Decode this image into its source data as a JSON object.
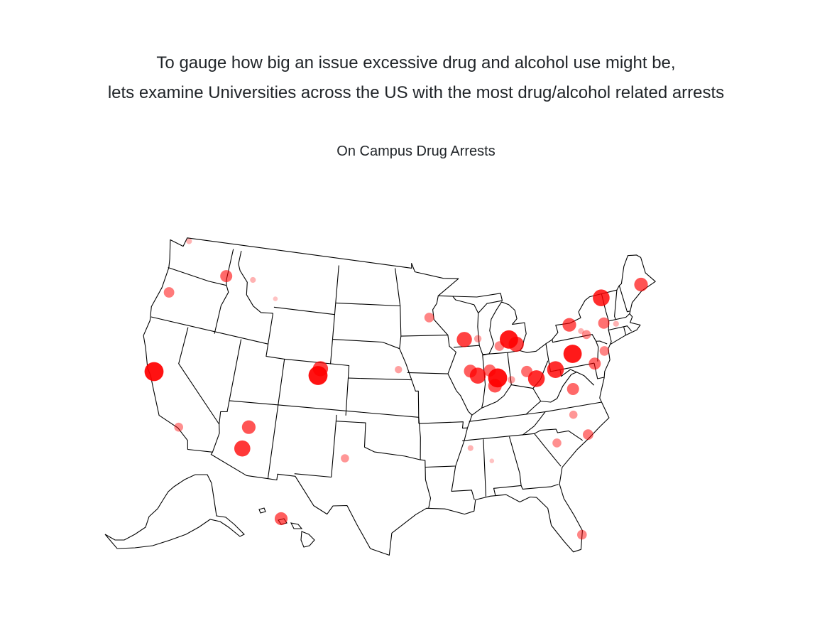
{
  "intro": {
    "line1": "To gauge how big an issue excessive drug and alcohol use might be,",
    "line2": "lets examine Universities across the US with the most drug/alcohol related arrests"
  },
  "map": {
    "title": "On Campus Drug Arrests",
    "projection": "albers-usa",
    "state_outline_color": "#000000",
    "marker_color": "#ff0000",
    "markers_note_scale": "circle size and opacity show relative arrest count (0-1)",
    "markers": [
      {
        "lon": -122.49,
        "lat": 48.73,
        "level": 0.1
      },
      {
        "lon": -117.16,
        "lat": 46.73,
        "level": 0.5
      },
      {
        "lon": -114.0,
        "lat": 46.87,
        "level": 0.1
      },
      {
        "lon": -111.04,
        "lat": 45.68,
        "level": 0.03
      },
      {
        "lon": -123.07,
        "lat": 44.3,
        "level": 0.4
      },
      {
        "lon": -122.26,
        "lat": 37.87,
        "level": 0.95
      },
      {
        "lon": -118.44,
        "lat": 34.07,
        "level": 0.3
      },
      {
        "lon": -111.65,
        "lat": 35.19,
        "level": 0.6
      },
      {
        "lon": -111.93,
        "lat": 33.42,
        "level": 0.75
      },
      {
        "lon": -105.08,
        "lat": 40.57,
        "level": 0.7
      },
      {
        "lon": -105.27,
        "lat": 40.01,
        "level": 0.95
      },
      {
        "lon": -101.87,
        "lat": 33.58,
        "level": 0.25
      },
      {
        "lon": -96.7,
        "lat": 40.82,
        "level": 0.2
      },
      {
        "lon": -157.82,
        "lat": 21.3,
        "level": 0.55
      },
      {
        "lon": -93.23,
        "lat": 44.97,
        "level": 0.35
      },
      {
        "lon": -89.4,
        "lat": 43.07,
        "level": 0.7
      },
      {
        "lon": -87.9,
        "lat": 43.04,
        "level": 0.2
      },
      {
        "lon": -84.48,
        "lat": 42.73,
        "level": 0.9
      },
      {
        "lon": -83.74,
        "lat": 42.28,
        "level": 0.7
      },
      {
        "lon": -85.6,
        "lat": 42.29,
        "level": 0.35
      },
      {
        "lon": -88.23,
        "lat": 40.1,
        "level": 0.75
      },
      {
        "lon": -88.99,
        "lat": 40.51,
        "level": 0.55
      },
      {
        "lon": -86.91,
        "lat": 40.42,
        "level": 0.5
      },
      {
        "lon": -86.16,
        "lat": 39.77,
        "level": 0.95
      },
      {
        "lon": -86.52,
        "lat": 39.17,
        "level": 0.6
      },
      {
        "lon": -84.73,
        "lat": 39.51,
        "level": 0.2
      },
      {
        "lon": -83.0,
        "lat": 40.0,
        "level": 0.45
      },
      {
        "lon": -82.1,
        "lat": 39.33,
        "level": 0.8
      },
      {
        "lon": -79.96,
        "lat": 39.8,
        "level": 0.8
      },
      {
        "lon": -77.86,
        "lat": 40.8,
        "level": 0.9
      },
      {
        "lon": -77.6,
        "lat": 43.13,
        "level": 0.6
      },
      {
        "lon": -76.48,
        "lat": 42.45,
        "level": 0.1
      },
      {
        "lon": -75.97,
        "lat": 42.09,
        "level": 0.3
      },
      {
        "lon": -73.45,
        "lat": 44.7,
        "level": 0.8
      },
      {
        "lon": -73.82,
        "lat": 42.68,
        "level": 0.45
      },
      {
        "lon": -68.67,
        "lat": 44.9,
        "level": 0.6
      },
      {
        "lon": -72.53,
        "lat": 42.39,
        "level": 0.1
      },
      {
        "lon": -74.45,
        "lat": 40.5,
        "level": 0.35
      },
      {
        "lon": -75.75,
        "lat": 39.68,
        "level": 0.5
      },
      {
        "lon": -78.5,
        "lat": 38.03,
        "level": 0.5
      },
      {
        "lon": -78.94,
        "lat": 36.0,
        "level": 0.25
      },
      {
        "lon": -77.87,
        "lat": 34.22,
        "level": 0.4
      },
      {
        "lon": -81.03,
        "lat": 34.0,
        "level": 0.3
      },
      {
        "lon": -89.53,
        "lat": 34.37,
        "level": 0.1
      },
      {
        "lon": -87.55,
        "lat": 33.21,
        "level": 0.03
      },
      {
        "lon": -80.1,
        "lat": 26.37,
        "level": 0.35
      }
    ]
  }
}
